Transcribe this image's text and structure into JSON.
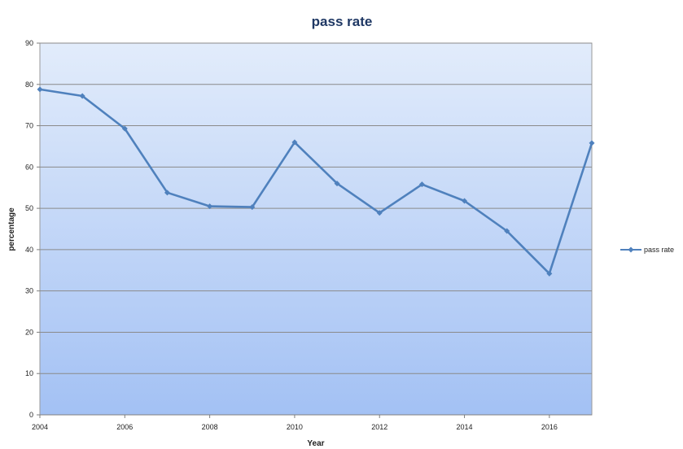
{
  "chart_data": {
    "type": "line",
    "title": "pass rate",
    "xlabel": "Year",
    "ylabel": "percentage",
    "xlim": [
      2004,
      2017
    ],
    "ylim": [
      0,
      90
    ],
    "x_ticks": [
      "2004",
      "2006",
      "2008",
      "2010",
      "2012",
      "2014",
      "2016"
    ],
    "y_ticks": [
      "0",
      "10",
      "20",
      "30",
      "40",
      "50",
      "60",
      "70",
      "80",
      "90"
    ],
    "grid": "horizontal",
    "legend_position": "right",
    "series": [
      {
        "name": "pass rate",
        "color": "#4f81bd",
        "x": [
          2004,
          2005,
          2006,
          2007,
          2008,
          2009,
          2010,
          2011,
          2012,
          2013,
          2014,
          2015,
          2016,
          2017
        ],
        "y": [
          78.8,
          77.2,
          69.3,
          53.8,
          50.5,
          50.3,
          66.0,
          56.0,
          48.9,
          55.8,
          51.8,
          44.5,
          34.2,
          65.8
        ]
      }
    ],
    "colors": {
      "plot_bg_top": "#e2ecfb",
      "plot_bg_bottom": "#a3c1f4",
      "gridline": "#8a8a8a",
      "axis": "#7f7f7f"
    }
  }
}
